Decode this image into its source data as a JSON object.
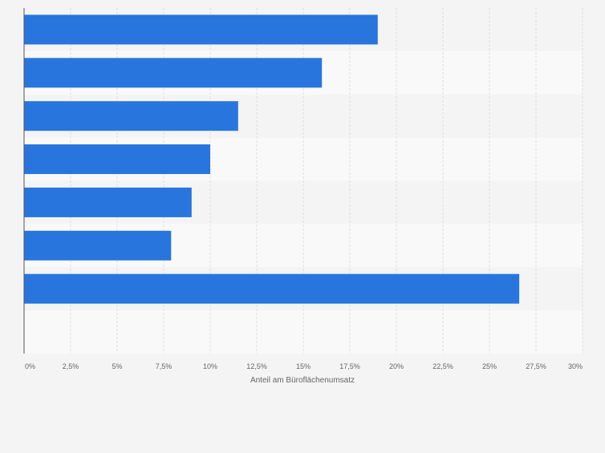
{
  "chart_data": {
    "type": "bar",
    "orientation": "horizontal",
    "categories": [
      "",
      "",
      "",
      "",
      "",
      "",
      "",
      ""
    ],
    "values": [
      19.0,
      16.0,
      11.5,
      10.0,
      9.0,
      7.9,
      26.6,
      null
    ],
    "xlabel": "Anteil am Büroflächenumsatz",
    "ylabel": "",
    "xlim": [
      0,
      30
    ],
    "xticks": [
      0,
      2.5,
      5,
      7.5,
      10,
      12.5,
      15,
      17.5,
      20,
      22.5,
      25,
      27.5,
      30
    ],
    "xtick_labels": [
      "0%",
      "2,5%",
      "5%",
      "7,5%",
      "10%",
      "12,5%",
      "15%",
      "17,5%",
      "20%",
      "22,5%",
      "25%",
      "27,5%",
      "30%"
    ],
    "grid": true,
    "colors": {
      "bar": "#2876dd",
      "background": "#f4f4f4",
      "band_light": "#f9f9f9",
      "band_dark": "#f4f4f4",
      "gridline": "#dedede",
      "axis": "#555555",
      "text": "#666666"
    }
  }
}
